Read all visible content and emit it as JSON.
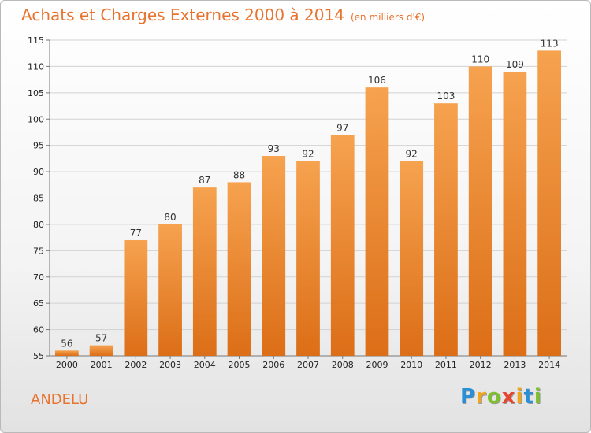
{
  "title": "Achats et Charges Externes 2000 à 2014",
  "subtitle": "(en milliers d'€)",
  "commune": "ANDELU",
  "logo": {
    "letters": [
      "P",
      "r",
      "o",
      "x",
      "i",
      "t",
      "i"
    ],
    "colors": [
      "#2b8fd6",
      "#f0a51b",
      "#7dbf2e",
      "#e8452f",
      "#f0a51b",
      "#2b8fd6",
      "#7dbf2e"
    ]
  },
  "chart_data": {
    "type": "bar",
    "categories": [
      "2000",
      "2001",
      "2002",
      "2003",
      "2004",
      "2005",
      "2006",
      "2007",
      "2008",
      "2009",
      "2010",
      "2011",
      "2012",
      "2013",
      "2014"
    ],
    "values": [
      56,
      57,
      77,
      80,
      87,
      88,
      93,
      92,
      97,
      106,
      92,
      103,
      110,
      109,
      113
    ],
    "ylim": [
      55,
      115
    ],
    "yticks": [
      55,
      60,
      65,
      70,
      75,
      80,
      85,
      90,
      95,
      100,
      105,
      110,
      115
    ],
    "grid": true,
    "bar_color": "#ee8a35",
    "xlabel": "",
    "ylabel": ""
  }
}
